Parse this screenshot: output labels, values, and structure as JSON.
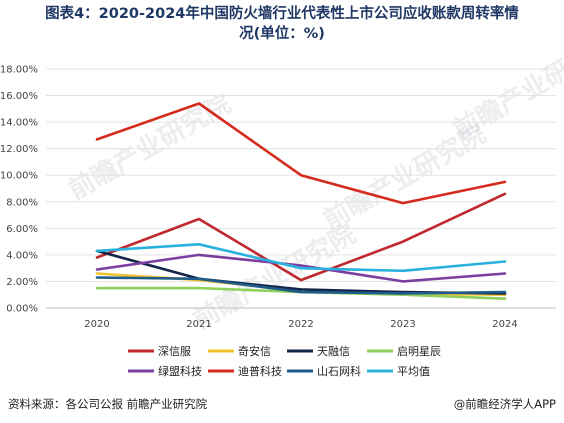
{
  "title": {
    "line1": "图表4：2020-2024年中国防火墙行业代表性上市公司应收账款周转率情",
    "line2": "况(单位：%)"
  },
  "source": "资料来源：各公司公报 前瞻产业研究院",
  "brand": "@前瞻经济学人APP",
  "watermark": "前瞻产业研究院",
  "chart_data": {
    "type": "line",
    "x": [
      "2020",
      "2021",
      "2022",
      "2023",
      "2024"
    ],
    "ylim": [
      0,
      18
    ],
    "yticks": [
      "0.00%",
      "2.00%",
      "4.00%",
      "6.00%",
      "8.00%",
      "10.00%",
      "12.00%",
      "14.00%",
      "16.00%",
      "18.00%"
    ],
    "legend_position": "bottom",
    "grid": "horizontal",
    "series": [
      {
        "name": "深信服",
        "color": "#c0282d",
        "values": [
          3.8,
          6.7,
          2.1,
          5.0,
          8.6
        ]
      },
      {
        "name": "奇安信",
        "color": "#f2c12e",
        "values": [
          2.6,
          2.1,
          1.3,
          1.1,
          1.0
        ]
      },
      {
        "name": "天融信",
        "color": "#14254a",
        "values": [
          4.3,
          2.2,
          1.4,
          1.2,
          1.1
        ]
      },
      {
        "name": "启明星辰",
        "color": "#8fcf5c",
        "values": [
          1.5,
          1.5,
          1.2,
          1.0,
          0.7
        ]
      },
      {
        "name": "绿盟科技",
        "color": "#7b3fa0",
        "values": [
          2.9,
          4.0,
          3.2,
          2.0,
          2.6
        ]
      },
      {
        "name": "迪普科技",
        "color": "#d52a1e",
        "values": [
          12.7,
          15.4,
          10.0,
          7.9,
          9.5
        ]
      },
      {
        "name": "山石网科",
        "color": "#1f5c8c",
        "values": [
          2.3,
          2.2,
          1.2,
          1.1,
          1.2
        ]
      },
      {
        "name": "平均值",
        "color": "#2ab1dd",
        "values": [
          4.3,
          4.8,
          3.0,
          2.8,
          3.5
        ]
      }
    ]
  }
}
